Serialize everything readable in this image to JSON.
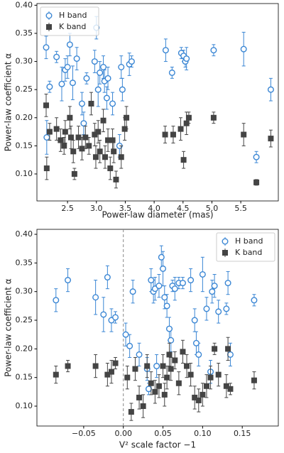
{
  "chart_data": [
    {
      "type": "scatter",
      "x_label": "Power-law diameter (mas)",
      "y_label": "Power-law coefficient α",
      "xlim": [
        1.97,
        6.15
      ],
      "ylim": [
        0.052,
        0.403
      ],
      "xticks": [
        2.5,
        {
          "value": 3.0,
          "label": "3.0"
        },
        3.5,
        {
          "value": 4.0,
          "label": "4.0"
        },
        4.5,
        {
          "value": 5.0,
          "label": "5.0"
        },
        5.5
      ],
      "yticks": [
        {
          "value": 0.1,
          "label": "0.10"
        },
        0.15,
        {
          "value": 0.2,
          "label": "0.20"
        },
        0.25,
        {
          "value": 0.3,
          "label": "0.30"
        },
        0.35,
        {
          "value": 0.4,
          "label": "0.40"
        }
      ],
      "legend": "upper left",
      "series": [
        {
          "name": "H band",
          "color": "#3a86d4",
          "marker": "open-circle",
          "x": [
            2.13,
            2.14,
            2.19,
            2.31,
            2.4,
            2.46,
            2.5,
            2.54,
            2.59,
            2.66,
            2.75,
            2.83,
            2.78,
            2.97,
            3.0,
            3.03,
            3.06,
            3.12,
            3.14,
            3.18,
            3.2,
            3.28,
            3.4,
            3.43,
            3.45,
            3.57,
            3.61,
            4.2,
            4.31,
            4.47,
            4.51,
            4.54,
            4.56,
            5.03,
            5.55,
            5.77,
            6.02
          ],
          "values": [
            0.325,
            0.165,
            0.255,
            0.308,
            0.26,
            0.285,
            0.29,
            0.33,
            0.262,
            0.305,
            0.225,
            0.27,
            0.19,
            0.3,
            0.36,
            0.25,
            0.28,
            0.29,
            0.265,
            0.235,
            0.27,
            0.225,
            0.15,
            0.29,
            0.25,
            0.295,
            0.3,
            0.32,
            0.28,
            0.315,
            0.31,
            0.3,
            0.305,
            0.32,
            0.322,
            0.13,
            0.25
          ],
          "errors": [
            0.02,
            0.03,
            0.01,
            0.01,
            0.03,
            0.02,
            0.02,
            0.02,
            0.03,
            0.02,
            0.02,
            0.01,
            0.02,
            0.02,
            0.02,
            0.03,
            0.02,
            0.02,
            0.02,
            0.02,
            0.02,
            0.02,
            0.02,
            0.02,
            0.02,
            0.02,
            0.01,
            0.02,
            0.01,
            0.01,
            0.01,
            0.01,
            0.02,
            0.01,
            0.03,
            0.01,
            0.02
          ]
        },
        {
          "name": "K band",
          "color": "#444444",
          "marker": "square",
          "x": [
            2.13,
            2.14,
            2.19,
            2.31,
            2.38,
            2.44,
            2.46,
            2.54,
            2.56,
            2.6,
            2.62,
            2.69,
            2.75,
            2.81,
            2.87,
            2.91,
            2.97,
            2.99,
            3.03,
            3.06,
            3.12,
            3.15,
            3.2,
            3.24,
            3.28,
            3.3,
            3.34,
            3.43,
            3.49,
            3.52,
            4.19,
            4.33,
            4.46,
            4.51,
            4.56,
            4.6,
            5.03,
            5.55,
            5.77,
            6.02
          ],
          "values": [
            0.222,
            0.11,
            0.175,
            0.18,
            0.16,
            0.15,
            0.175,
            0.2,
            0.165,
            0.14,
            0.1,
            0.165,
            0.145,
            0.165,
            0.15,
            0.225,
            0.17,
            0.13,
            0.175,
            0.14,
            0.195,
            0.13,
            0.16,
            0.11,
            0.16,
            0.14,
            0.09,
            0.13,
            0.18,
            0.2,
            0.17,
            0.17,
            0.18,
            0.125,
            0.19,
            0.2,
            0.2,
            0.17,
            0.085,
            0.163
          ],
          "errors": [
            0.02,
            0.02,
            0.015,
            0.02,
            0.02,
            0.015,
            0.02,
            0.02,
            0.02,
            0.02,
            0.01,
            0.02,
            0.02,
            0.02,
            0.015,
            0.02,
            0.02,
            0.02,
            0.02,
            0.02,
            0.02,
            0.02,
            0.02,
            0.02,
            0.02,
            0.02,
            0.015,
            0.02,
            0.02,
            0.02,
            0.015,
            0.015,
            0.02,
            0.015,
            0.02,
            0.01,
            0.01,
            0.02,
            0.005,
            0.015
          ]
        }
      ]
    },
    {
      "type": "scatter",
      "x_label": "V² scale factor −1",
      "y_label": "Power-law coefficient α",
      "xlim": [
        -0.109,
        0.1955
      ],
      "ylim": [
        0.0653,
        0.4087
      ],
      "vline": 0,
      "xticks": [
        {
          "value": -0.05,
          "label": "−0.05"
        },
        {
          "value": 0,
          "label": "0.00"
        },
        0.05,
        {
          "value": 0.1,
          "label": "0.10"
        },
        0.15
      ],
      "yticks": [
        {
          "value": 0.1,
          "label": "0.10"
        },
        0.15,
        {
          "value": 0.2,
          "label": "0.20"
        },
        0.25,
        {
          "value": 0.3,
          "label": "0.30"
        },
        0.35,
        {
          "value": 0.4,
          "label": "0.40"
        }
      ],
      "legend": "upper right",
      "series": [
        {
          "name": "H band",
          "color": "#3a86d4",
          "marker": "open-circle",
          "x": [
            -0.085,
            -0.07,
            -0.035,
            -0.025,
            -0.02,
            -0.015,
            -0.01,
            0.003,
            0.008,
            0.012,
            0.02,
            0.03,
            0.032,
            0.035,
            0.038,
            0.04,
            0.042,
            0.045,
            0.048,
            0.05,
            0.052,
            0.055,
            0.058,
            0.06,
            0.062,
            0.065,
            0.07,
            0.075,
            0.085,
            0.09,
            0.092,
            0.095,
            0.1,
            0.105,
            0.11,
            0.112,
            0.115,
            0.12,
            0.13,
            0.132,
            0.135,
            0.165
          ],
          "values": [
            0.285,
            0.32,
            0.29,
            0.26,
            0.325,
            0.25,
            0.255,
            0.225,
            0.205,
            0.3,
            0.19,
            0.165,
            0.13,
            0.32,
            0.3,
            0.305,
            0.17,
            0.31,
            0.36,
            0.34,
            0.29,
            0.275,
            0.235,
            0.215,
            0.31,
            0.305,
            0.315,
            0.315,
            0.32,
            0.25,
            0.21,
            0.19,
            0.33,
            0.27,
            0.16,
            0.3,
            0.31,
            0.265,
            0.27,
            0.315,
            0.19,
            0.285
          ],
          "errors": [
            0.02,
            0.02,
            0.03,
            0.03,
            0.02,
            0.02,
            0.01,
            0.02,
            0.02,
            0.02,
            0.02,
            0.02,
            0.01,
            0.02,
            0.02,
            0.02,
            0.02,
            0.02,
            0.02,
            0.03,
            0.02,
            0.02,
            0.02,
            0.02,
            0.01,
            0.02,
            0.01,
            0.01,
            0.02,
            0.02,
            0.02,
            0.02,
            0.03,
            0.02,
            0.02,
            0.02,
            0.02,
            0.02,
            0.01,
            0.02,
            0.02,
            0.01
          ]
        },
        {
          "name": "K band",
          "color": "#444444",
          "marker": "square",
          "x": [
            -0.085,
            -0.07,
            -0.035,
            -0.02,
            -0.015,
            -0.01,
            0.005,
            0.01,
            0.015,
            0.02,
            0.025,
            0.03,
            0.035,
            0.04,
            0.045,
            0.05,
            0.052,
            0.055,
            0.058,
            0.06,
            0.065,
            0.07,
            0.075,
            0.08,
            0.085,
            0.09,
            0.095,
            0.1,
            0.105,
            0.11,
            0.115,
            0.12,
            0.13,
            0.132,
            0.135,
            0.165
          ],
          "values": [
            0.155,
            0.17,
            0.17,
            0.155,
            0.16,
            0.175,
            0.15,
            0.09,
            0.165,
            0.115,
            0.1,
            0.17,
            0.14,
            0.125,
            0.135,
            0.17,
            0.12,
            0.15,
            0.19,
            0.165,
            0.18,
            0.14,
            0.195,
            0.17,
            0.155,
            0.115,
            0.11,
            0.12,
            0.135,
            0.15,
            0.2,
            0.155,
            0.135,
            0.2,
            0.13,
            0.145
          ],
          "errors": [
            0.015,
            0.01,
            0.02,
            0.02,
            0.02,
            0.01,
            0.02,
            0.015,
            0.02,
            0.02,
            0.02,
            0.02,
            0.02,
            0.02,
            0.02,
            0.02,
            0.02,
            0.02,
            0.02,
            0.02,
            0.015,
            0.02,
            0.02,
            0.02,
            0.02,
            0.02,
            0.02,
            0.02,
            0.02,
            0.02,
            0.01,
            0.02,
            0.02,
            0.02,
            0.01,
            0.015
          ]
        }
      ]
    }
  ]
}
